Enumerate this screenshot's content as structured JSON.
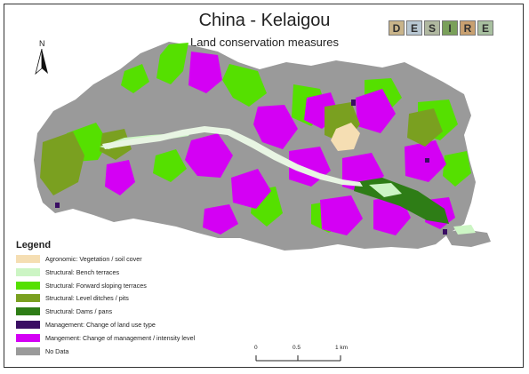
{
  "map": {
    "title": "China - Kelaigou",
    "subtitle": "Land conservation measures",
    "logo_letters": [
      "D",
      "E",
      "S",
      "I",
      "R",
      "E"
    ],
    "north_label": "N"
  },
  "legend": {
    "title": "Legend",
    "items": [
      {
        "label": "Agronomic: Vegetation / soil cover",
        "color": "#f5deb3"
      },
      {
        "label": "Structural: Bench terraces",
        "color": "#ccf5c4"
      },
      {
        "label": "Structural: Forward sloping terraces",
        "color": "#55e000"
      },
      {
        "label": "Structural: Level ditches / pits",
        "color": "#7aa020"
      },
      {
        "label": "Structural: Dams / pans",
        "color": "#2e7d16"
      },
      {
        "label": "Management: Change of land use type",
        "color": "#3a0d63"
      },
      {
        "label": "Mangement: Change of management / intensity level",
        "color": "#d400f4"
      },
      {
        "label": "No Data",
        "color": "#9a9a9a"
      }
    ]
  },
  "scale_bar": {
    "labels": [
      "0",
      "0.5",
      "1 km"
    ]
  }
}
